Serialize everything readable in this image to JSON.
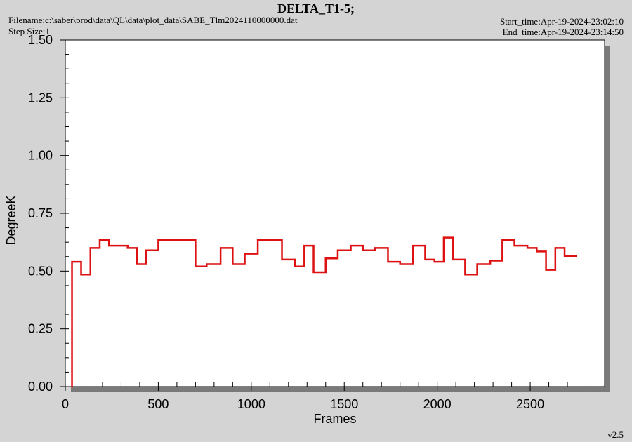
{
  "header": {
    "title": "DELTA_T1-5;",
    "filename": "Filename:c:\\saber\\prod\\data\\QL\\data\\plot_data\\SABE_Tlm2024110000000.dat",
    "step_size": "Step Size:1",
    "start_time": "Start_time:Apr-19-2024-23:02:10",
    "end_time": "End_time:Apr-19-2024-23:14:50",
    "version": "v2.5"
  },
  "colors": {
    "series": "#dd1111",
    "plot_bg": "#ffffff",
    "page_bg": "#d4d4d4",
    "shadow": "#7a7a7a"
  },
  "chart_data": {
    "type": "line",
    "step": true,
    "title": "DELTA_T1-5;",
    "xlabel": "Frames",
    "ylabel": "DegreeK",
    "xlim": [
      0,
      2900
    ],
    "ylim": [
      0,
      1.5
    ],
    "x_ticks": [
      0,
      500,
      1000,
      1500,
      2000,
      2500
    ],
    "y_ticks": [
      0.0,
      0.25,
      0.5,
      0.75,
      1.0,
      1.25,
      1.5
    ],
    "x_tick_labels": [
      "0",
      "500",
      "1000",
      "1500",
      "2000",
      "2500"
    ],
    "y_tick_labels": [
      "0.00",
      "0.25",
      "0.50",
      "0.75",
      "1.00",
      "1.25",
      "1.50"
    ],
    "grid": false,
    "series": [
      {
        "x": [
          35,
          36,
          85,
          135,
          185,
          235,
          335,
          385,
          435,
          500,
          700,
          760,
          835,
          900,
          965,
          1035,
          1165,
          1235,
          1285,
          1335,
          1400,
          1465,
          1535,
          1600,
          1665,
          1735,
          1800,
          1870,
          1935,
          1985,
          2035,
          2085,
          2150,
          2215,
          2285,
          2350,
          2415,
          2485,
          2535,
          2585,
          2635,
          2685,
          2735,
          2750
        ],
        "y": [
          0,
          0.54,
          0.485,
          0.6,
          0.635,
          0.61,
          0.6,
          0.53,
          0.59,
          0.635,
          0.52,
          0.53,
          0.6,
          0.53,
          0.575,
          0.635,
          0.55,
          0.52,
          0.61,
          0.495,
          0.555,
          0.59,
          0.61,
          0.59,
          0.6,
          0.54,
          0.53,
          0.61,
          0.55,
          0.54,
          0.645,
          0.55,
          0.485,
          0.53,
          0.545,
          0.635,
          0.61,
          0.6,
          0.585,
          0.505,
          0.6,
          0.565,
          0.565,
          0.565
        ]
      }
    ]
  }
}
